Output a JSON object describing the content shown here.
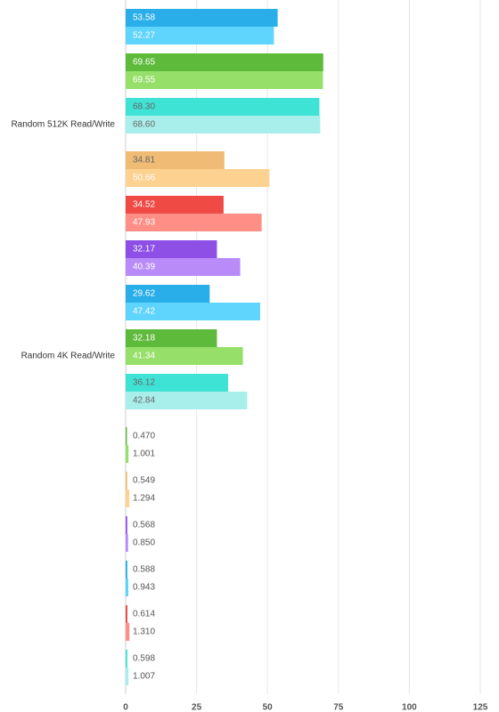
{
  "chart_data": {
    "type": "bar",
    "orientation": "horizontal",
    "categories": [
      null,
      null,
      "Random 512K Read/Write",
      null,
      null,
      null,
      null,
      "Random 4K Read/Write",
      null,
      null,
      null,
      null,
      null,
      null,
      null
    ],
    "series": [
      {
        "colors": [
          "#2aaeea",
          "#5dba3b",
          "#3fe3d5",
          "#efbb75",
          "#f04a45",
          "#8e4fe6",
          "#2aaeea",
          "#5dba3b",
          "#3fe3d5",
          "#5dba3b",
          "#efbb75",
          "#8e4fe6",
          "#2aaeea",
          "#f04a45",
          "#3fe3d5"
        ],
        "values": [
          53.58,
          69.65,
          68.3,
          34.81,
          34.52,
          32.17,
          29.62,
          32.18,
          36.12,
          0.47,
          0.549,
          0.568,
          0.588,
          0.614,
          0.598
        ],
        "value_labels": [
          "53.58",
          "69.65",
          "68.30",
          "34.81",
          "34.52",
          "32.17",
          "29.62",
          "32.18",
          "36.12",
          "0.470",
          "0.549",
          "0.568",
          "0.588",
          "0.614",
          "0.598"
        ]
      },
      {
        "colors": [
          "#5fd4fc",
          "#96e06a",
          "#a8eeeb",
          "#fdd18f",
          "#ff8e86",
          "#b98bf8",
          "#5fd4fc",
          "#96e06a",
          "#a8eeeb",
          "#96e06a",
          "#fdd18f",
          "#b98bf8",
          "#5fd4fc",
          "#ff8e86",
          "#a8eeeb"
        ],
        "values": [
          52.27,
          69.55,
          68.6,
          50.66,
          47.93,
          40.39,
          47.42,
          41.34,
          42.84,
          1.001,
          1.294,
          0.85,
          0.943,
          1.31,
          1.007
        ],
        "value_labels": [
          "52.27",
          "69.55",
          "68.60",
          "50.66",
          "47.93",
          "40.39",
          "47.42",
          "41.34",
          "42.84",
          "1.001",
          "1.294",
          "0.850",
          "0.943",
          "1.310",
          "1.007"
        ]
      }
    ],
    "xlim": [
      0,
      125
    ],
    "xticks": [
      0,
      25,
      50,
      75,
      100,
      125
    ],
    "grid": true
  }
}
